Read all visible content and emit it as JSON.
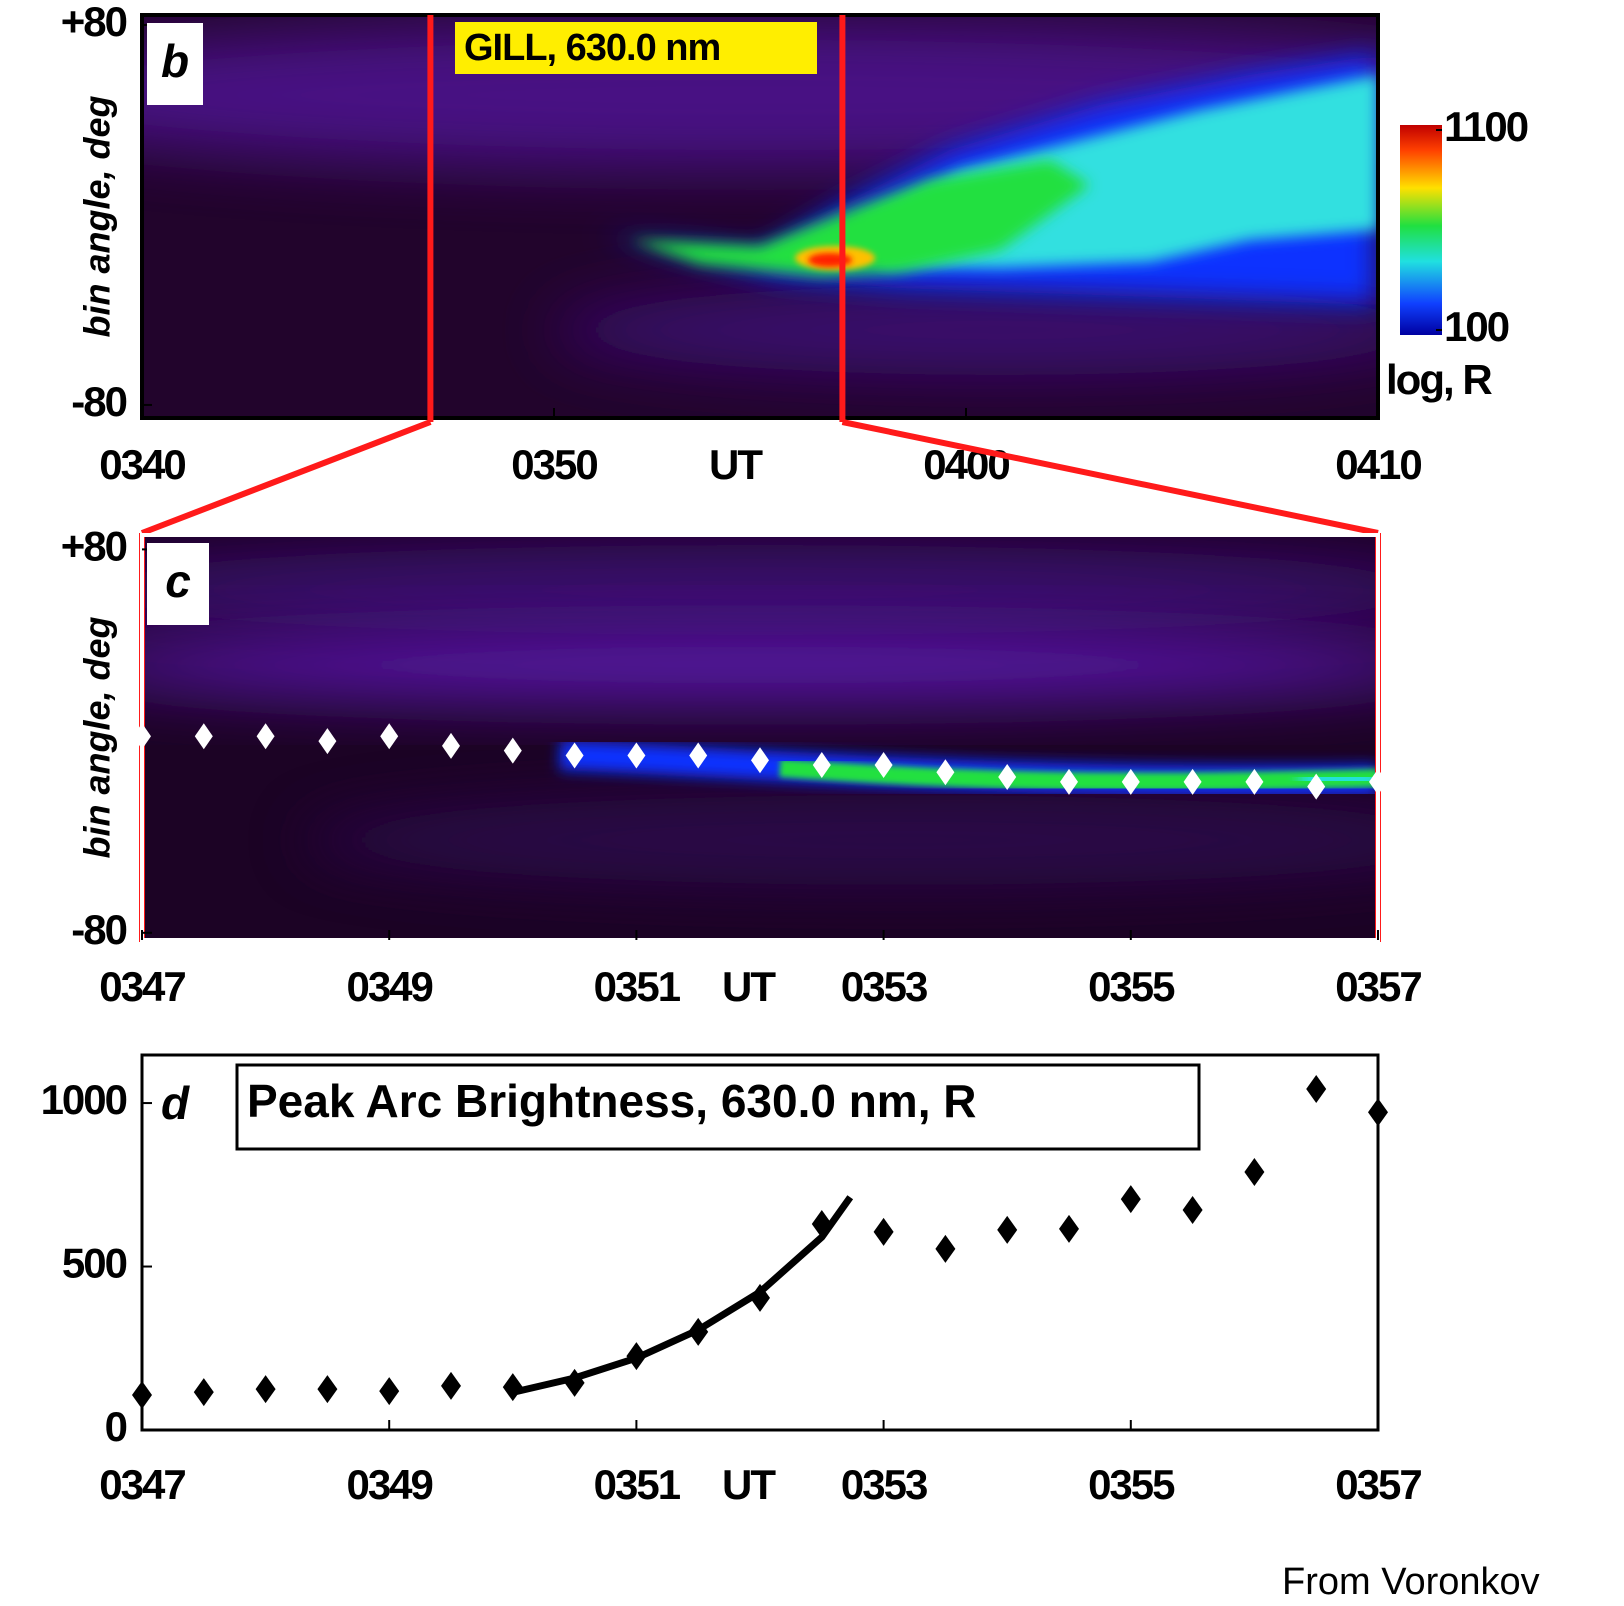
{
  "chart_data": [
    {
      "type": "heatmap",
      "panel_label": "b",
      "annotation": "GILL, 630.0 nm",
      "ylabel": "bin angle, deg",
      "xlabel": "UT",
      "xlim": [
        40,
        70
      ],
      "xticks": [
        {
          "value": 40,
          "label": "0340"
        },
        {
          "value": 50,
          "label": "0350"
        },
        {
          "value": 60,
          "label": "0400"
        },
        {
          "value": 70,
          "label": "0410"
        }
      ],
      "ylim": [
        -85.5,
        84.2
      ],
      "yticks": [
        {
          "value": 80,
          "label": "+80"
        },
        -80
      ],
      "zoom_window": [
        47,
        57
      ],
      "zoom_color": "#ff1a1a",
      "colorbar": {
        "clim": [
          100,
          1100
        ],
        "log_scale": true,
        "ticks": [
          1100,
          100
        ],
        "label": "log, R"
      }
    },
    {
      "type": "heatmap",
      "panel_label": "c",
      "ylabel": "bin angle, deg",
      "xlabel": "UT",
      "xlim": [
        47,
        57
      ],
      "xticks": [
        {
          "value": 47,
          "label": "0347"
        },
        {
          "value": 49,
          "label": "0349"
        },
        {
          "value": 51,
          "label": "0351"
        },
        {
          "value": 53,
          "label": "0353"
        },
        {
          "value": 55,
          "label": "0355"
        },
        {
          "value": 57,
          "label": "0357"
        }
      ],
      "ylim": [
        -83,
        86
      ],
      "yticks": [
        {
          "value": 80,
          "label": "+80"
        },
        -80
      ],
      "markers": {
        "color": "#ffffff",
        "x": [
          47,
          47.5,
          48,
          48.5,
          49,
          49.5,
          50,
          50.5,
          51,
          51.5,
          52,
          52.5,
          53,
          53.5,
          54,
          54.5,
          55,
          55.5,
          56,
          56.5,
          57
        ],
        "values": [
          2,
          2,
          2,
          0,
          2,
          -2,
          -4,
          -6,
          -6,
          -6,
          -8,
          -10,
          -10,
          -13,
          -15,
          -17,
          -17,
          -17,
          -17,
          -19,
          -17
        ]
      }
    },
    {
      "type": "scatter",
      "panel_label": "d",
      "title": "Peak Arc Brightness, 630.0 nm, R",
      "xlabel": "UT",
      "xlim": [
        47,
        57
      ],
      "xticks": [
        {
          "value": 47,
          "label": "0347"
        },
        {
          "value": 49,
          "label": "0349"
        },
        {
          "value": 51,
          "label": "0351"
        },
        {
          "value": 53,
          "label": "0353"
        },
        {
          "value": 55,
          "label": "0355"
        },
        {
          "value": 57,
          "label": "0357"
        }
      ],
      "ylim": [
        0,
        1147
      ],
      "yticks": [
        0,
        500,
        1000
      ],
      "color": "#000000",
      "x": [
        47,
        47.5,
        48,
        48.5,
        49,
        49.5,
        50,
        50.5,
        51,
        51.5,
        52,
        52.5,
        53,
        53.5,
        54,
        54.5,
        55,
        55.5,
        56,
        56.5,
        57
      ],
      "values": [
        107,
        116,
        125,
        125,
        119,
        135,
        131,
        144,
        226,
        300,
        404,
        630,
        606,
        554,
        612,
        615,
        706,
        673,
        789,
        1043,
        972
      ],
      "fit": {
        "color": "#000000",
        "x": [
          50,
          50.5,
          51,
          51.5,
          52,
          52.5,
          52.73
        ],
        "values": [
          115,
          159,
          220,
          306,
          422,
          590,
          712
        ]
      }
    }
  ],
  "credit": "From Voronkov"
}
